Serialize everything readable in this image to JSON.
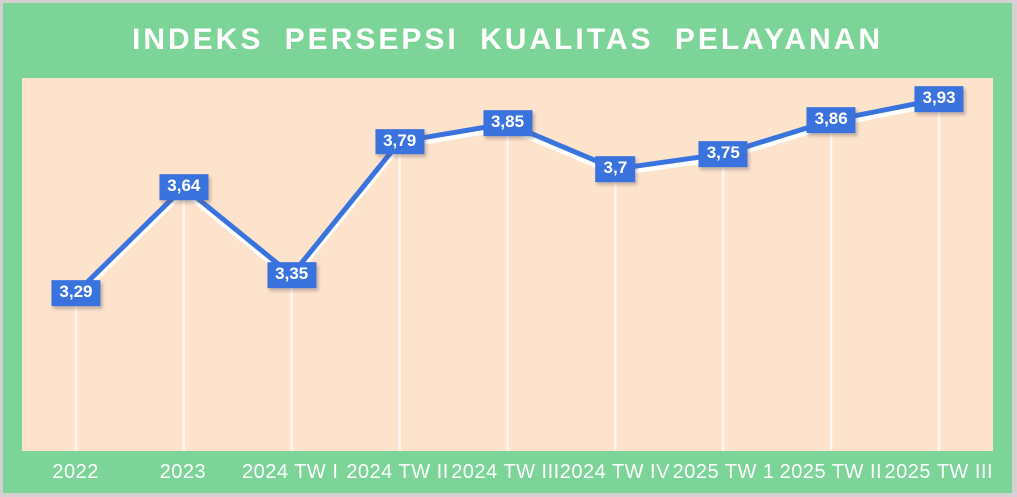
{
  "title": "INDEKS PERSEPSI KUALITAS PELAYANAN",
  "chart_data": {
    "type": "line",
    "title": "INDEKS PERSEPSI KUALITAS PELAYANAN",
    "categories": [
      "2022",
      "2023",
      "2024 TW I",
      "2024 TW II",
      "2024 TW III",
      "2024 TW IV",
      "2025 TW 1",
      "2025 TW II",
      "2025 TW III"
    ],
    "values": [
      3.29,
      3.64,
      3.35,
      3.79,
      3.85,
      3.7,
      3.75,
      3.86,
      3.93
    ],
    "point_labels": [
      "3,29",
      "3,64",
      "3,35",
      "3,79",
      "3,85",
      "3,7",
      "3,75",
      "3,86",
      "3,93"
    ],
    "xlabel": "",
    "ylabel": "",
    "ylim": [
      2.77,
      4.0
    ],
    "grid": "vertical-white-drop-lines-per-point",
    "legend": "none"
  },
  "colors": {
    "outer_background": "#7cd498",
    "plot_background": "#fde2cc",
    "line": "#3b73de",
    "line_casing": "#ffffff",
    "drop_line": "#ffffff",
    "label_background": "#3b73de",
    "label_text": "#ffffff",
    "title_text": "#ffffff",
    "axis_text": "#ffffff",
    "frame_border": "#d5d0d2"
  }
}
